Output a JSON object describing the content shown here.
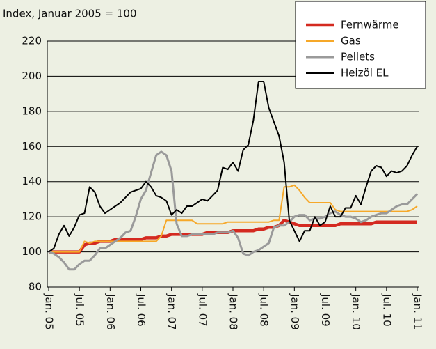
{
  "chart_data": {
    "type": "line",
    "subtitle": "Index, Januar 2005 = 100",
    "categories": [
      "Jan. 05",
      null,
      null,
      null,
      null,
      null,
      "Jul. 05",
      null,
      null,
      null,
      null,
      null,
      "Jan. 06",
      null,
      null,
      null,
      null,
      null,
      "Jul. 06",
      null,
      null,
      null,
      null,
      null,
      "Jan. 07",
      null,
      null,
      null,
      null,
      null,
      "Jul. 07",
      null,
      null,
      null,
      null,
      null,
      "Jan. 08",
      null,
      null,
      null,
      null,
      null,
      "Jul. 08",
      null,
      null,
      null,
      null,
      null,
      "Jan. 09",
      null,
      null,
      null,
      null,
      null,
      "Jul. 09",
      null,
      null,
      null,
      null,
      null,
      "Jan. 10",
      null,
      null,
      null,
      null,
      null,
      "Jul. 10",
      null,
      null,
      null,
      null,
      null,
      "Jan. 11"
    ],
    "series": [
      {
        "name": "Fernwärme",
        "color": "#d42a20",
        "values": [
          100,
          100,
          100,
          100,
          100,
          100,
          100,
          104,
          105,
          105,
          106,
          106,
          106,
          107,
          107,
          107,
          107,
          107,
          107,
          108,
          108,
          108,
          109,
          109,
          110,
          110,
          110,
          110,
          110,
          110,
          110,
          111,
          111,
          111,
          111,
          111,
          112,
          112,
          112,
          112,
          112,
          113,
          113,
          114,
          114,
          115,
          118,
          117,
          116,
          115,
          115,
          115,
          115,
          115,
          115,
          115,
          115,
          116,
          116,
          116,
          116,
          116,
          116,
          116,
          117,
          117,
          117,
          117,
          117,
          117,
          117,
          117,
          117
        ]
      },
      {
        "name": "Gas",
        "color": "#f6a829",
        "values": [
          100,
          100,
          100,
          100,
          100,
          100,
          100,
          106,
          105,
          106,
          106,
          106,
          106,
          106,
          106,
          106,
          106,
          106,
          106,
          106,
          106,
          106,
          109,
          118,
          118,
          118,
          118,
          118,
          118,
          116,
          116,
          116,
          116,
          116,
          116,
          117,
          117,
          117,
          117,
          117,
          117,
          117,
          117,
          117,
          118,
          118,
          137,
          137,
          138,
          135,
          131,
          128,
          128,
          128,
          128,
          128,
          124,
          123,
          123,
          123,
          123,
          123,
          123,
          123,
          123,
          123,
          123,
          123,
          123,
          123,
          123,
          124,
          126
        ]
      },
      {
        "name": "Pellets",
        "color": "#9a9a9a",
        "values": [
          100,
          99,
          97,
          94,
          90,
          90,
          93,
          95,
          95,
          98,
          102,
          102,
          104,
          106,
          108,
          111,
          112,
          120,
          130,
          135,
          145,
          155,
          157,
          155,
          146,
          116,
          109,
          109,
          110,
          110,
          110,
          110,
          110,
          111,
          111,
          111,
          112,
          108,
          99,
          98,
          100,
          101,
          103,
          105,
          114,
          115,
          115,
          117,
          120,
          121,
          121,
          118,
          119,
          119,
          120,
          122,
          123,
          121,
          120,
          120,
          119,
          117,
          118,
          120,
          121,
          122,
          122,
          124,
          126,
          127,
          127,
          130,
          133
        ]
      },
      {
        "name": "Heizöl EL",
        "color": "#000000",
        "values": [
          100,
          102,
          110,
          115,
          109,
          114,
          121,
          122,
          137,
          134,
          126,
          122,
          124,
          126,
          128,
          131,
          134,
          135,
          136,
          140,
          137,
          132,
          131,
          129,
          121,
          124,
          122,
          126,
          126,
          128,
          130,
          129,
          132,
          135,
          148,
          147,
          151,
          146,
          158,
          161,
          175,
          197,
          197,
          182,
          174,
          166,
          151,
          118,
          112,
          106,
          112,
          112,
          120,
          115,
          117,
          126,
          120,
          120,
          125,
          125,
          132,
          127,
          137,
          146,
          149,
          148,
          143,
          146,
          145,
          146,
          149,
          155,
          160
        ]
      }
    ],
    "ylim": [
      80,
      220
    ],
    "yticks": [
      80,
      100,
      120,
      140,
      160,
      180,
      200,
      220
    ],
    "grid": true,
    "legend": "top-right"
  }
}
